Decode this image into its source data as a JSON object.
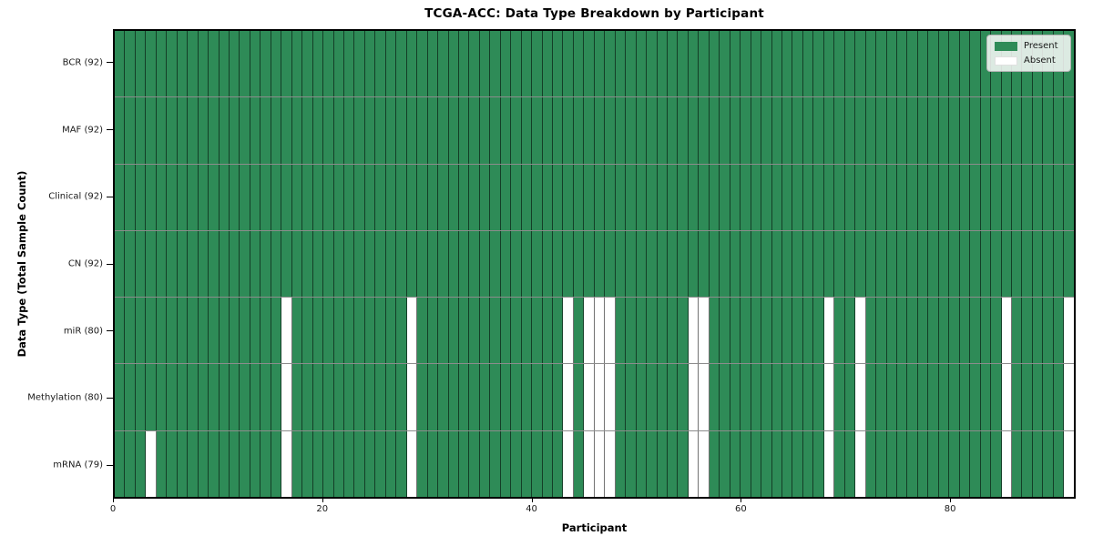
{
  "chart_data": {
    "type": "heatmap",
    "title": "TCGA-ACC: Data Type Breakdown by Participant",
    "xlabel": "Participant",
    "ylabel": "Data Type (Total Sample Count)",
    "n_participants": 92,
    "x_ticks": [
      0,
      20,
      40,
      60,
      80
    ],
    "x_range": [
      0,
      92
    ],
    "grid": "cell-borders",
    "legend_position": "upper-right",
    "rows": [
      {
        "label": "BCR (92)",
        "present_count": 92,
        "absent_participants": []
      },
      {
        "label": "MAF (92)",
        "present_count": 92,
        "absent_participants": []
      },
      {
        "label": "Clinical (92)",
        "present_count": 92,
        "absent_participants": []
      },
      {
        "label": "CN (92)",
        "present_count": 92,
        "absent_participants": []
      },
      {
        "label": "miR (80)",
        "present_count": 80,
        "absent_participants": [
          16,
          28,
          43,
          45,
          46,
          47,
          55,
          56,
          68,
          71,
          85,
          91
        ]
      },
      {
        "label": "Methylation (80)",
        "present_count": 80,
        "absent_participants": [
          16,
          28,
          43,
          45,
          46,
          47,
          55,
          56,
          68,
          71,
          85,
          91
        ]
      },
      {
        "label": "mRNA (79)",
        "present_count": 79,
        "absent_participants": [
          3,
          16,
          28,
          43,
          45,
          46,
          47,
          55,
          56,
          68,
          71,
          85,
          91
        ]
      }
    ],
    "legend": [
      {
        "label": "Present",
        "color": "#2e8b57"
      },
      {
        "label": "Absent",
        "color": "#ffffff"
      }
    ],
    "colors": {
      "present": "#2e8b57",
      "absent": "#ffffff",
      "plot_border": "#000000"
    }
  }
}
